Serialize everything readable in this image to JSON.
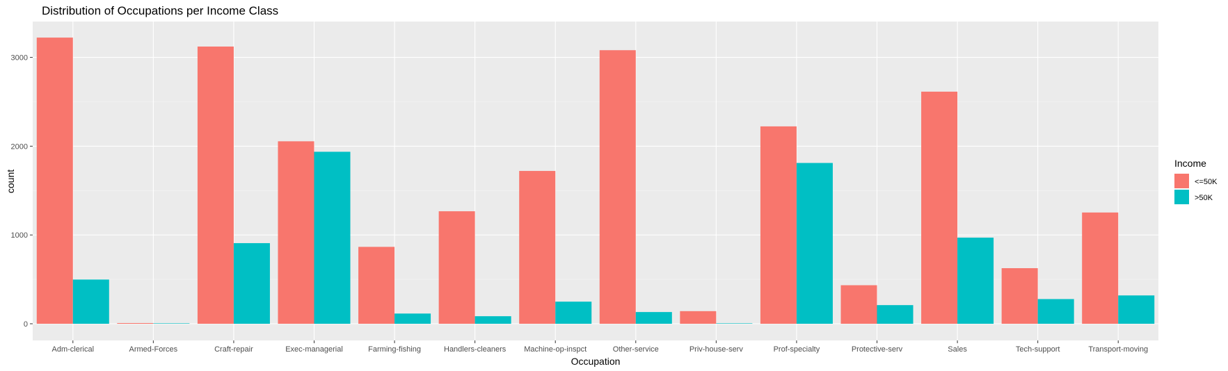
{
  "chart_data": {
    "type": "bar",
    "title": "Distribution of Occupations per Income Class",
    "xlabel": "Occupation",
    "ylabel": "count",
    "ylim": [
      0,
      3440
    ],
    "yticks": [
      0,
      1000,
      2000,
      3000
    ],
    "grid": true,
    "legend_position": "right",
    "legend_title": "Income",
    "categories": [
      "Adm-clerical",
      "Armed-Forces",
      "Craft-repair",
      "Exec-managerial",
      "Farming-fishing",
      "Handlers-cleaners",
      "Machine-op-inspct",
      "Other-service",
      "Priv-house-serv",
      "Prof-specialty",
      "Protective-serv",
      "Sales",
      "Tech-support",
      "Transport-moving"
    ],
    "series": [
      {
        "name": "<=50K",
        "color": "#F8766D",
        "values": [
          3223,
          8,
          3122,
          2055,
          866,
          1267,
          1721,
          3081,
          142,
          2223,
          434,
          2614,
          626,
          1253
        ]
      },
      {
        "name": ">50K",
        "color": "#00BFC4",
        "values": [
          498,
          1,
          908,
          1937,
          115,
          85,
          249,
          132,
          1,
          1811,
          210,
          970,
          278,
          319
        ]
      }
    ]
  }
}
